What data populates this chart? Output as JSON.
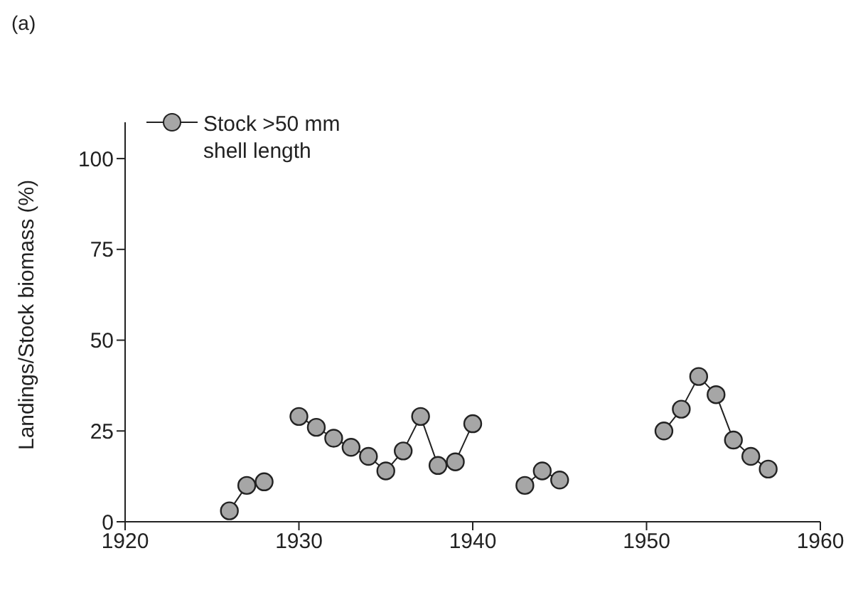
{
  "chart_data": {
    "type": "line",
    "title": "(a)",
    "ylabel": "Landings/Stock biomass (%)",
    "x": [
      1926,
      1927,
      1928,
      1929,
      1930,
      1931,
      1932,
      1933,
      1934,
      1935,
      1936,
      1937,
      1938,
      1939,
      1940,
      1941,
      1942,
      1943,
      1944,
      1945,
      1946,
      1947,
      1948,
      1949,
      1950,
      1951,
      1952,
      1953,
      1954,
      1955,
      1956,
      1957
    ],
    "series": [
      {
        "name": "Stock >50 mm shell length",
        "color": "#a6a6a6",
        "values": [
          3,
          10,
          11,
          null,
          29,
          26,
          23,
          20.5,
          18,
          14,
          19.5,
          29,
          15.5,
          16.5,
          27,
          null,
          null,
          10,
          14,
          11.5,
          null,
          null,
          null,
          null,
          null,
          25,
          31,
          40,
          35,
          22.5,
          18,
          14.5
        ]
      }
    ],
    "xlim": [
      1920,
      1960
    ],
    "xticks": [
      1920,
      1930,
      1940,
      1950,
      1960
    ],
    "ylim": [
      0,
      110
    ],
    "yticks": [
      0,
      25,
      50,
      75,
      100
    ],
    "grid": false,
    "legend": "top left",
    "marker": "circle",
    "line_style": "solid"
  }
}
